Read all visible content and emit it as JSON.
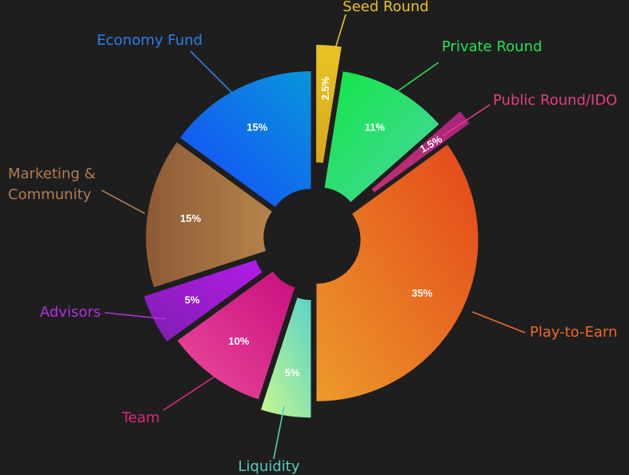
{
  "chart_data": {
    "type": "pie",
    "variant": "donut",
    "title": "",
    "legend": "none",
    "slices": [
      {
        "name": "Seed Round",
        "value": 2.5,
        "label": "2.5%",
        "color": "#e8c425",
        "color2": "#d8a81c"
      },
      {
        "name": "Private Round",
        "value": 11,
        "label": "11%",
        "color": "#10e643",
        "color2": "#4cd7a6"
      },
      {
        "name": "Public Round/IDO",
        "value": 1.5,
        "label": "1.5%",
        "color": "#c2316f",
        "color2": "#a8247f"
      },
      {
        "name": "Play-to-Earn",
        "value": 35,
        "label": "35%",
        "color": "#e4461a",
        "color2": "#ec9a2b"
      },
      {
        "name": "Liquidity",
        "value": 5,
        "label": "5%",
        "color": "#5bd3c6",
        "color2": "#c9f78e"
      },
      {
        "name": "Team",
        "value": 10,
        "label": "10%",
        "color": "#c80f7f",
        "color2": "#ec4c9a"
      },
      {
        "name": "Advisors",
        "value": 5,
        "label": "5%",
        "color": "#b21ce8",
        "color2": "#7f1eb0"
      },
      {
        "name": "Marketing &\nCommunity",
        "value": 15,
        "label": "15%",
        "color": "#8d5a36",
        "color2": "#b5844b"
      },
      {
        "name": "Economy Fund",
        "value": 15,
        "label": "15%",
        "color": "#1848fb",
        "color2": "#0796d9"
      }
    ],
    "label_colors": {
      "Seed Round": "#e8c425",
      "Private Round": "#22e254",
      "Public Round/IDO": "#e0407d",
      "Play-to-Earn": "#ee6a23",
      "Liquidity": "#52cfbd",
      "Team": "#d9287f",
      "Advisors": "#b12fe0",
      "Marketing &\nCommunity": "#b27c4c",
      "Economy Fund": "#2a7fe8"
    }
  }
}
